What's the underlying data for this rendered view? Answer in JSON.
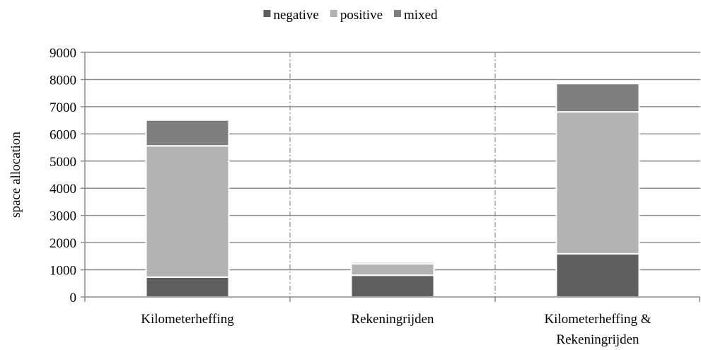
{
  "chart_data": {
    "type": "bar",
    "stacked": true,
    "title": "",
    "xlabel": "",
    "ylabel": "space allocation",
    "ylim": [
      0,
      9000
    ],
    "yticks": [
      0,
      1000,
      2000,
      3000,
      4000,
      5000,
      6000,
      7000,
      8000,
      9000
    ],
    "grid": true,
    "legend_position": "top-center",
    "categories": [
      [
        "Kilometerheffing"
      ],
      [
        "Rekeningrijden"
      ],
      [
        "Kilometerheffing &",
        "Rekeningrijden"
      ]
    ],
    "series": [
      {
        "name": "negative",
        "color": "#5f5f5f",
        "values": [
          730,
          800,
          1590
        ]
      },
      {
        "name": "positive",
        "color": "#b2b2b2",
        "values": [
          4830,
          420,
          5220
        ]
      },
      {
        "name": "mixed",
        "color": "#7f7f7f",
        "values": [
          950,
          60,
          1040
        ]
      }
    ]
  }
}
